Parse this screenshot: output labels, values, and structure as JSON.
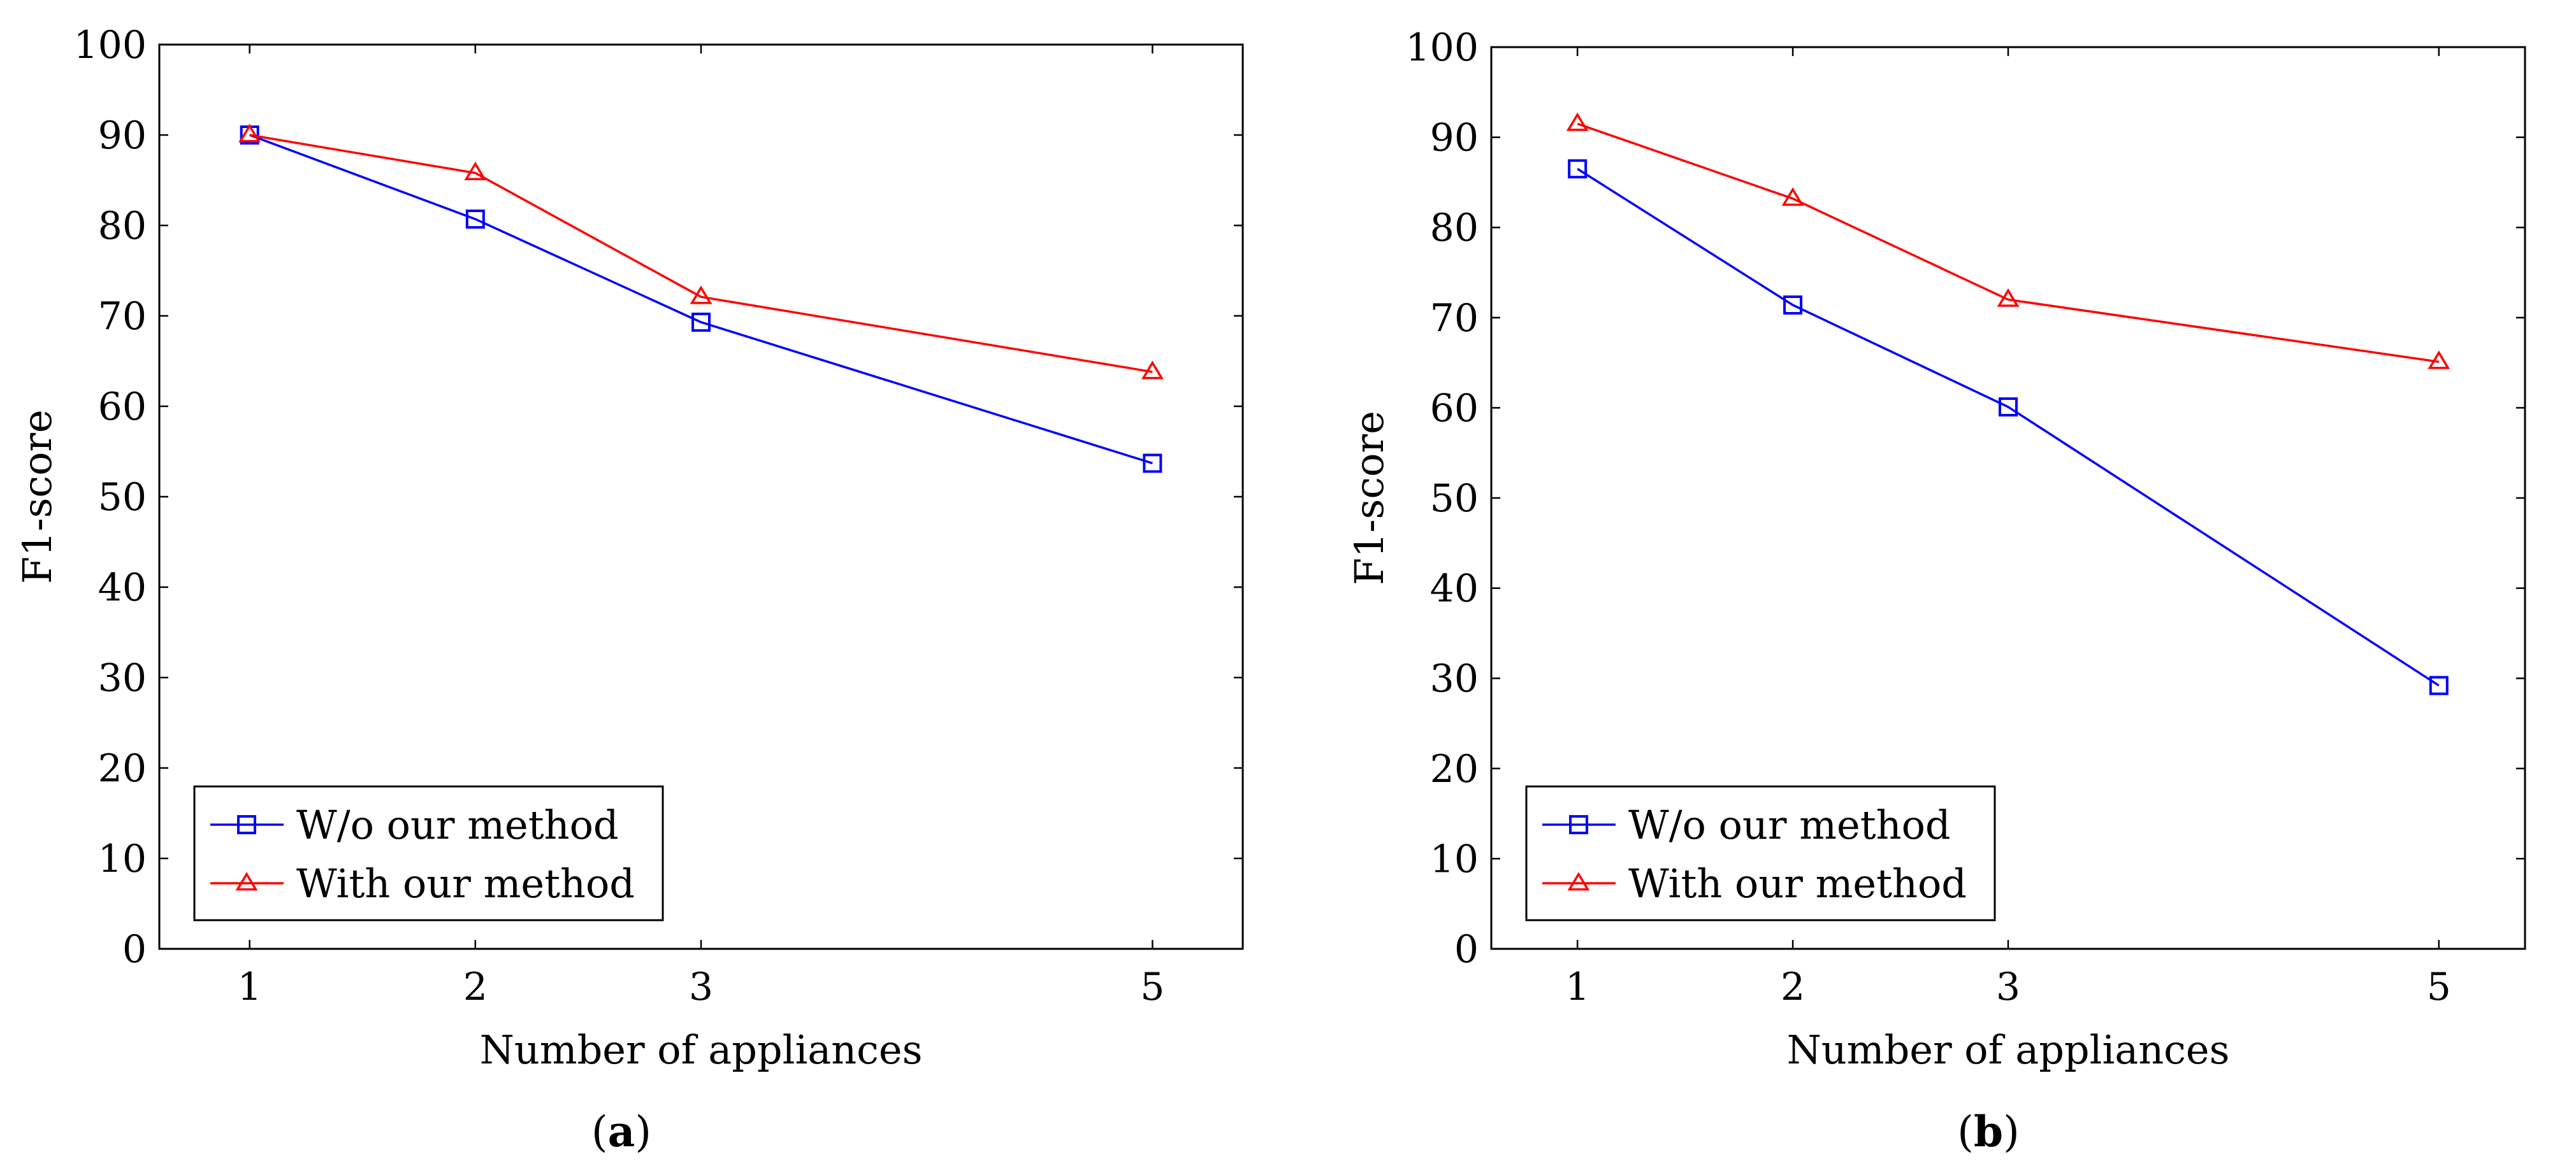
{
  "figure": {
    "panels": [
      {
        "caption": "a"
      },
      {
        "caption": "b"
      }
    ]
  },
  "chart_data": [
    {
      "type": "line",
      "panel": "a",
      "title": "",
      "xlabel": "Number of appliances",
      "ylabel": "F1-score",
      "x": [
        1,
        2,
        3,
        5
      ],
      "xticks": [
        "1",
        "2",
        "3",
        "5"
      ],
      "xlim": [
        0.6,
        5.4
      ],
      "ylim": [
        0,
        100
      ],
      "yticks": [
        "0",
        "10",
        "20",
        "30",
        "40",
        "50",
        "60",
        "70",
        "80",
        "90",
        "100"
      ],
      "grid": false,
      "legend_position": "bottom-left",
      "series": [
        {
          "name": "W/o our method",
          "color": "#0000ff",
          "marker": "square",
          "values": [
            90.0,
            80.7,
            69.3,
            53.7
          ]
        },
        {
          "name": "With our method",
          "color": "#ff0000",
          "marker": "triangle",
          "values": [
            90.0,
            85.8,
            72.1,
            63.8
          ]
        }
      ]
    },
    {
      "type": "line",
      "panel": "b",
      "title": "",
      "xlabel": "Number of appliances",
      "ylabel": "F1-score",
      "x": [
        1,
        2,
        3,
        5
      ],
      "xticks": [
        "1",
        "2",
        "3",
        "5"
      ],
      "xlim": [
        0.6,
        5.4
      ],
      "ylim": [
        0,
        100
      ],
      "yticks": [
        "0",
        "10",
        "20",
        "30",
        "40",
        "50",
        "60",
        "70",
        "80",
        "90",
        "100"
      ],
      "grid": false,
      "legend_position": "bottom-left",
      "series": [
        {
          "name": "W/o our method",
          "color": "#0000ff",
          "marker": "square",
          "values": [
            86.5,
            71.4,
            60.1,
            29.2
          ]
        },
        {
          "name": "With our method",
          "color": "#ff0000",
          "marker": "triangle",
          "values": [
            91.5,
            83.2,
            72.0,
            65.1
          ]
        }
      ]
    }
  ]
}
